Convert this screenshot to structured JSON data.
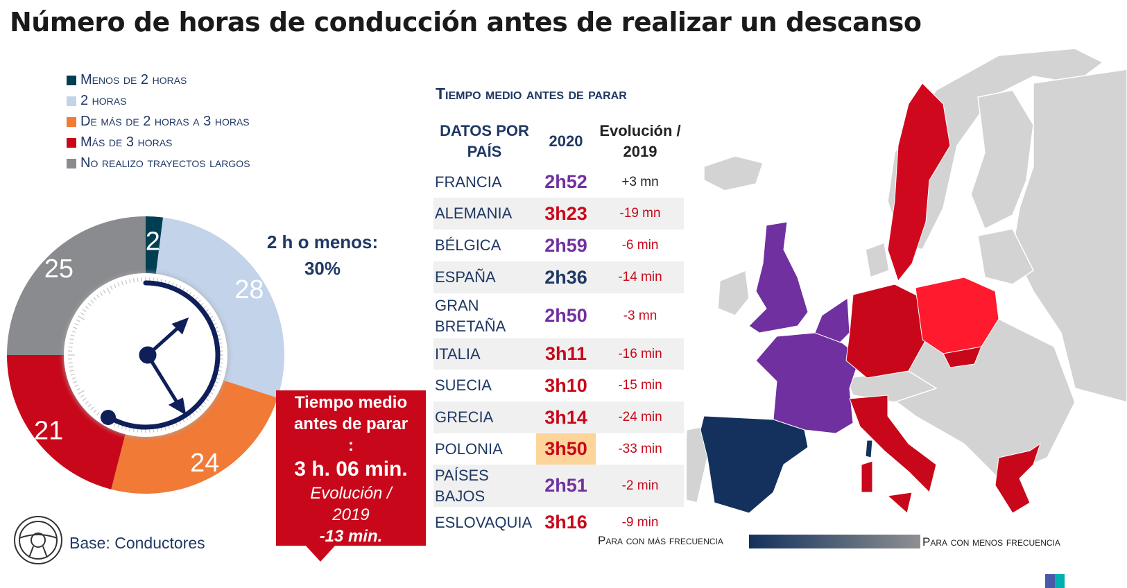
{
  "title": "Número de horas de conducción antes de realizar un descanso",
  "colors": {
    "navy": "#1f3864",
    "purple": "#7030a0",
    "red": "#c8081a",
    "poland_highlight": "#fdd49a",
    "bright_red": "#ff1a2e",
    "map_gray": "#d0d0d0"
  },
  "chart_data": {
    "type": "pie",
    "style": "donut",
    "categories": [
      "Menos de 2 horas",
      "2 horas",
      "De más de 2 horas a 3 horas",
      "Más de 3 horas",
      "No realizo trayectos largos"
    ],
    "values": [
      2,
      28,
      24,
      21,
      25
    ],
    "colors": [
      "#003e52",
      "#c2d3ea",
      "#f07a36",
      "#c8081a",
      "#898b8e"
    ],
    "data_labels": [
      "2",
      "28",
      "24",
      "21",
      "25"
    ],
    "legend_placement": "top-left"
  },
  "summary": {
    "line1": "2 h o menos:",
    "line2": "30%"
  },
  "callout": {
    "l1": "Tiempo medio",
    "l2": "antes de parar",
    "l3": ":",
    "value": "3 h. 06 min.",
    "evo1": "Evolución /",
    "evo2": "2019",
    "evo_value": "-13 min."
  },
  "base": "Base: Conductores",
  "table": {
    "title": "Tiempo medio antes de parar",
    "headers": {
      "country_l1": "DATOS POR",
      "country_l2": "PAÍS",
      "year": "2020",
      "evo_l1": "Evolución /",
      "evo_l2": "2019"
    },
    "rows": [
      {
        "country": "FRANCIA",
        "value": "2h52",
        "evolution": "+3 mn",
        "value_color": "#7030a0",
        "evo_color": "#222222"
      },
      {
        "country": "ALEMANIA",
        "value": "3h23",
        "evolution": "-19 mn",
        "value_color": "#c8081a",
        "evo_color": "#c8081a"
      },
      {
        "country": "BÉLGICA",
        "value": "2h59",
        "evolution": "-6 min",
        "value_color": "#7030a0",
        "evo_color": "#c8081a"
      },
      {
        "country": "ESPAÑA",
        "value": "2h36",
        "evolution": "-14 min",
        "value_color": "#1f3864",
        "evo_color": "#c8081a"
      },
      {
        "country": "GRAN BRETAÑA",
        "country_l1": "GRAN",
        "country_l2": "BRETAÑA",
        "value": "2h50",
        "evolution": "-3 mn",
        "value_color": "#7030a0",
        "evo_color": "#c8081a"
      },
      {
        "country": "ITALIA",
        "value": "3h11",
        "evolution": "-16 min",
        "value_color": "#c8081a",
        "evo_color": "#c8081a"
      },
      {
        "country": "SUECIA",
        "value": "3h10",
        "evolution": "-15 min",
        "value_color": "#c8081a",
        "evo_color": "#c8081a"
      },
      {
        "country": "GRECIA",
        "value": "3h14",
        "evolution": "-24 min",
        "value_color": "#c8081a",
        "evo_color": "#c8081a"
      },
      {
        "country": "POLONIA",
        "value": "3h50",
        "evolution": "-33 min",
        "value_color": "#c8081a",
        "evo_color": "#c8081a",
        "highlight": true
      },
      {
        "country": "PAÍSES BAJOS",
        "country_l1": "PAÍSES",
        "country_l2": "BAJOS",
        "value": "2h51",
        "evolution": "-2 min",
        "value_color": "#7030a0",
        "evo_color": "#c8081a"
      },
      {
        "country": "ESLOVAQUIA",
        "value": "3h16",
        "evolution": "-9 min",
        "value_color": "#c8081a",
        "evo_color": "#c8081a"
      }
    ]
  },
  "map_scale": {
    "left": "Para con más frecuencia",
    "right": "Para con menos frecuencia",
    "gradient": [
      "#13315c",
      "#8e9092"
    ]
  }
}
